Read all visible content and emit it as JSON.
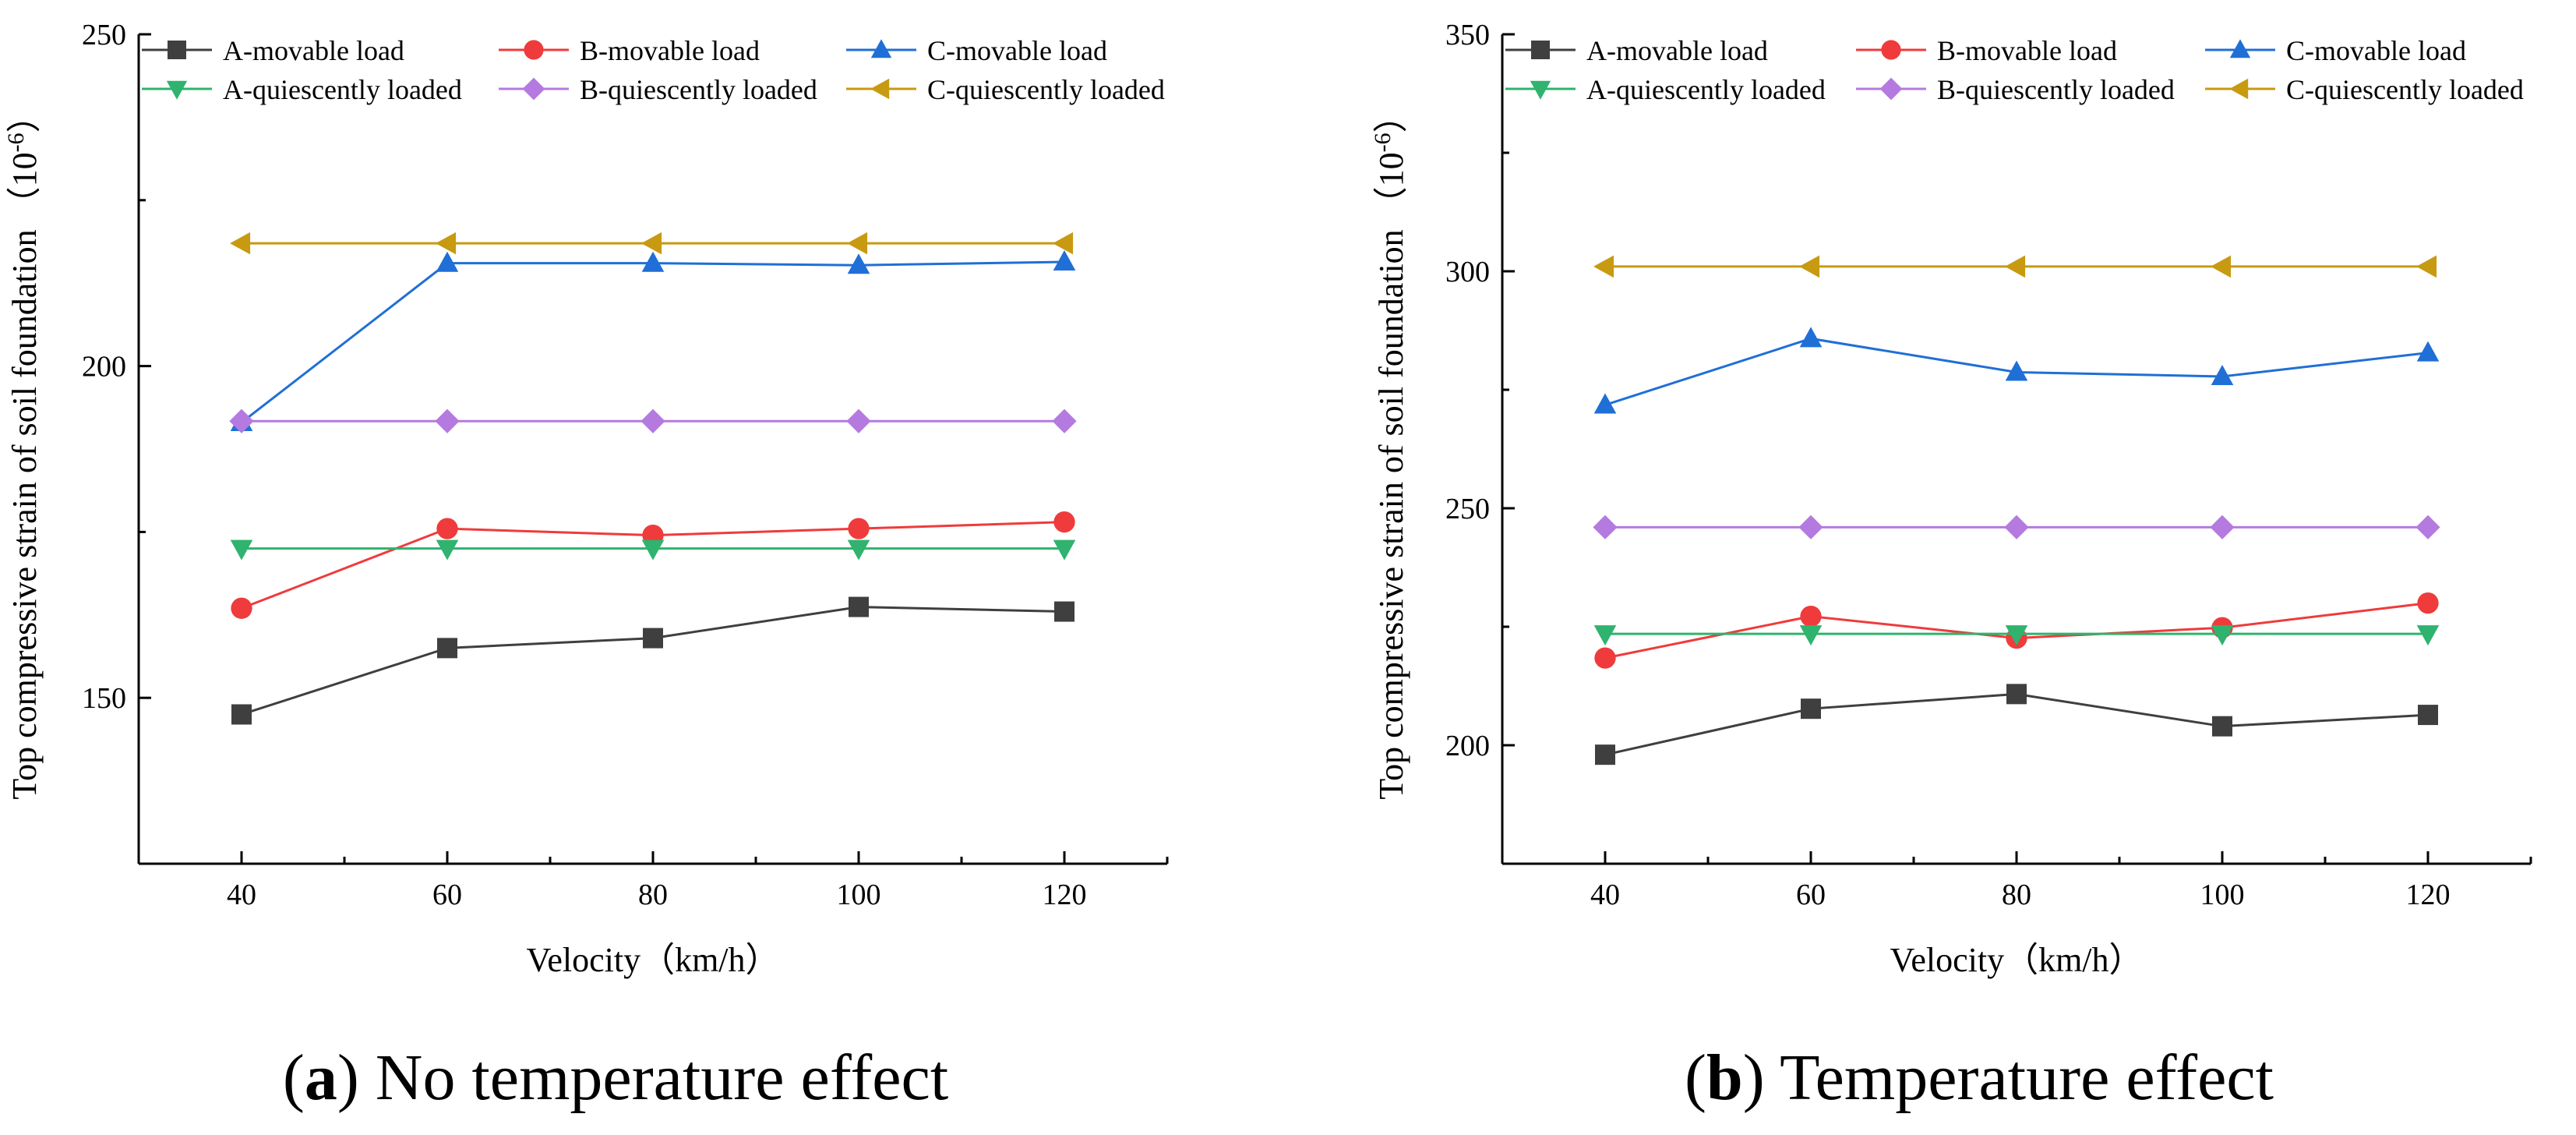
{
  "chart_data": [
    {
      "type": "line",
      "panel_label": "a",
      "title": "No temperature effect",
      "xlabel": "Velocity（km/h）",
      "ylabel": "Top compressive strain of soil foundation",
      "ylabel_unit": "（10",
      "ylabel_exp": "-6",
      "ylabel_close": "）",
      "x": [
        40,
        60,
        80,
        100,
        120
      ],
      "xlim": [
        30,
        130
      ],
      "xticks": [
        40,
        60,
        80,
        100,
        120
      ],
      "ylim": [
        125,
        250
      ],
      "yticks": [
        150,
        200,
        250
      ],
      "legend_position": "top",
      "series": [
        {
          "name": "A-movable load",
          "color": "#3f3f3f",
          "marker": "square",
          "values": [
            147.5,
            157.5,
            159,
            163.7,
            163
          ]
        },
        {
          "name": "B-movable load",
          "color": "#ef3b3b",
          "marker": "circle",
          "values": [
            163.5,
            175.5,
            174.5,
            175.5,
            176.5
          ]
        },
        {
          "name": "C-movable load",
          "color": "#1f6fd6",
          "marker": "triangle-up",
          "values": [
            191.5,
            215.5,
            215.5,
            215.2,
            215.7
          ]
        },
        {
          "name": "A-quiescently loaded",
          "color": "#2fb36e",
          "marker": "triangle-down",
          "values": [
            172.5,
            172.5,
            172.5,
            172.5,
            172.5
          ]
        },
        {
          "name": "B-quiescently loaded",
          "color": "#b57ae0",
          "marker": "diamond",
          "values": [
            191.7,
            191.7,
            191.7,
            191.7,
            191.7
          ]
        },
        {
          "name": "C-quiescently loaded",
          "color": "#c79a11",
          "marker": "triangle-left",
          "values": [
            218.5,
            218.5,
            218.5,
            218.5,
            218.5
          ]
        }
      ]
    },
    {
      "type": "line",
      "panel_label": "b",
      "title": "Temperature effect",
      "xlabel": "Velocity（km/h）",
      "ylabel": "Top compressive strain of soil foundation",
      "ylabel_unit": "（10",
      "ylabel_exp": "-6",
      "ylabel_close": "）",
      "x": [
        40,
        60,
        80,
        100,
        120
      ],
      "xlim": [
        30,
        130
      ],
      "xticks": [
        40,
        60,
        80,
        100,
        120
      ],
      "ylim": [
        175,
        350
      ],
      "yticks": [
        200,
        250,
        300,
        350
      ],
      "legend_position": "top",
      "series": [
        {
          "name": "A-movable load",
          "color": "#3f3f3f",
          "marker": "square",
          "values": [
            198,
            207.7,
            210.8,
            204,
            206.4
          ]
        },
        {
          "name": "B-movable load",
          "color": "#ef3b3b",
          "marker": "circle",
          "values": [
            218.4,
            227.2,
            222.6,
            224.8,
            230
          ]
        },
        {
          "name": "C-movable load",
          "color": "#1f6fd6",
          "marker": "triangle-up",
          "values": [
            271.8,
            285.8,
            278.7,
            277.8,
            282.8
          ]
        },
        {
          "name": "A-quiescently loaded",
          "color": "#2fb36e",
          "marker": "triangle-down",
          "values": [
            223.5,
            223.5,
            223.5,
            223.5,
            223.5
          ]
        },
        {
          "name": "B-quiescently loaded",
          "color": "#b57ae0",
          "marker": "diamond",
          "values": [
            246,
            246,
            246,
            246,
            246
          ]
        },
        {
          "name": "C-quiescently loaded",
          "color": "#c79a11",
          "marker": "triangle-left",
          "values": [
            301,
            301,
            301,
            301,
            301
          ]
        }
      ]
    }
  ]
}
